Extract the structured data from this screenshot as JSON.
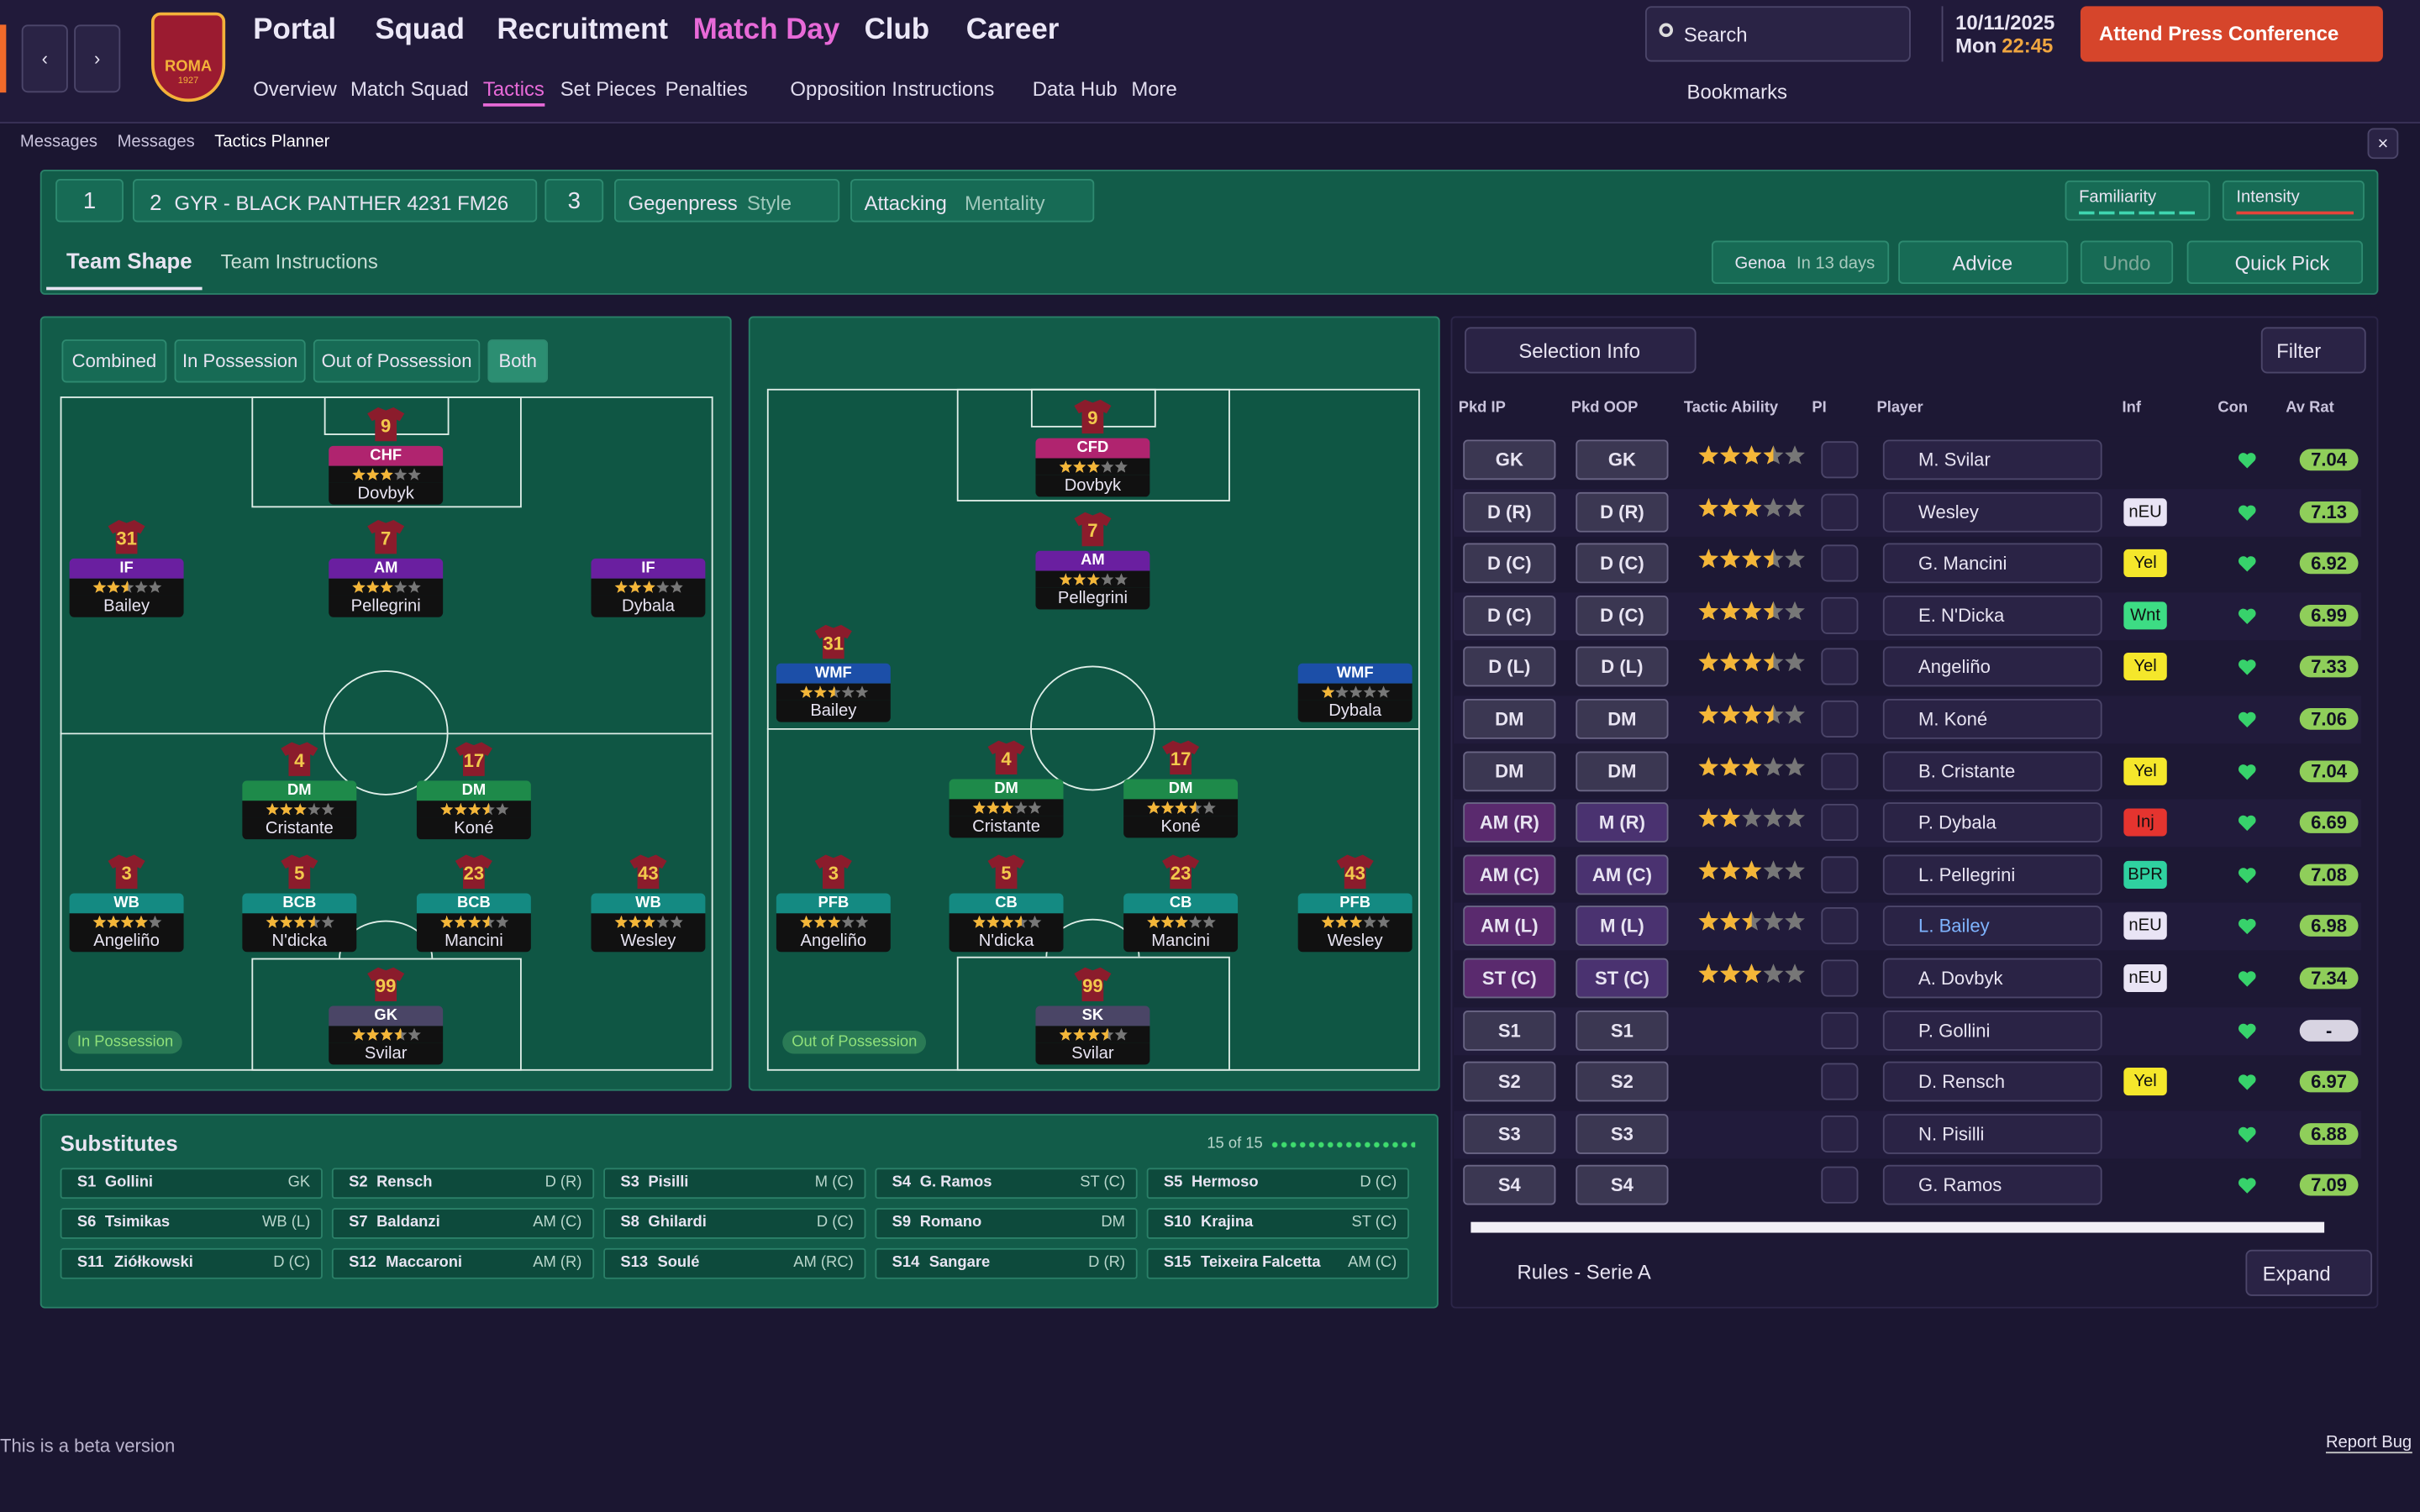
{
  "header": {
    "nav": [
      "Portal",
      "Squad",
      "Recruitment",
      "Match Day",
      "Club",
      "Career"
    ],
    "subnav": [
      "Overview",
      "Match Squad",
      "Tactics",
      "Set Pieces",
      "Penalties",
      "Opposition Instructions",
      "Data Hub",
      "More"
    ],
    "badge_text": "ROMA",
    "badge_year": "1927",
    "search": "Search",
    "date": "10/11/2025",
    "day": "Mon",
    "time": "22:45",
    "press": "Attend Press Conference",
    "bookmarks": "Bookmarks"
  },
  "breadcrumb": [
    "Messages",
    "Messages",
    "Tactics Planner"
  ],
  "tactic": {
    "slots": [
      "1",
      "2",
      "3"
    ],
    "name": "GYR - BLACK PANTHER 4231 FM26",
    "style": "Gegenpress",
    "style_label": "Style",
    "mentality": "Attacking",
    "mentality_label": "Mentality",
    "familiarity": "Familiarity",
    "intensity": "Intensity"
  },
  "tabs": [
    "Team Shape",
    "Team Instructions"
  ],
  "next_match": {
    "opponent": "Genoa",
    "when": "In 13 days"
  },
  "actions": {
    "advice": "Advice",
    "undo": "Undo",
    "quick_pick": "Quick Pick"
  },
  "shape_toggles": [
    "Combined",
    "In Possession",
    "Out of Possession",
    "Both"
  ],
  "pitches": [
    {
      "label": "In Possession",
      "players": [
        {
          "number": 9,
          "role": "CHF",
          "rating": 3,
          "name": "Dovbyk",
          "color": "#b0246f"
        },
        {
          "number": 31,
          "role": "IF",
          "rating": 2.5,
          "name": "Bailey",
          "color": "#6a1fa0"
        },
        {
          "number": 7,
          "role": "AM",
          "rating": 3,
          "name": "Pellegrini",
          "color": "#6a1fa0"
        },
        {
          "number": null,
          "role": "IF",
          "rating": 3,
          "name": "Dybala",
          "color": "#6a1fa0"
        },
        {
          "number": 4,
          "role": "DM",
          "rating": 3,
          "name": "Cristante",
          "color": "#1e8a4a"
        },
        {
          "number": 17,
          "role": "DM",
          "rating": 3.5,
          "name": "Koné",
          "color": "#1e8a4a"
        },
        {
          "number": 3,
          "role": "WB",
          "rating": 4,
          "name": "Angeliño",
          "color": "#148a82"
        },
        {
          "number": 5,
          "role": "BCB",
          "rating": 3.5,
          "name": "N'dicka",
          "color": "#148a82"
        },
        {
          "number": 23,
          "role": "BCB",
          "rating": 3.5,
          "name": "Mancini",
          "color": "#148a82"
        },
        {
          "number": 43,
          "role": "WB",
          "rating": 3,
          "name": "Wesley",
          "color": "#148a82"
        },
        {
          "number": 99,
          "role": "GK",
          "rating": 3.5,
          "name": "Svilar",
          "color": "#4a4566"
        }
      ]
    },
    {
      "label": "Out of Possession",
      "players": [
        {
          "number": 9,
          "role": "CFD",
          "rating": 3,
          "name": "Dovbyk",
          "color": "#b0246f"
        },
        {
          "number": 31,
          "role": "WMF",
          "rating": 2.5,
          "name": "Bailey",
          "color": "#1c4fa8"
        },
        {
          "number": 7,
          "role": "AM",
          "rating": 3,
          "name": "Pellegrini",
          "color": "#6a1fa0"
        },
        {
          "number": null,
          "role": "WMF",
          "rating": 1,
          "name": "Dybala",
          "color": "#1c4fa8"
        },
        {
          "number": 4,
          "role": "DM",
          "rating": 3,
          "name": "Cristante",
          "color": "#1e8a4a"
        },
        {
          "number": 17,
          "role": "DM",
          "rating": 3.5,
          "name": "Koné",
          "color": "#1e8a4a"
        },
        {
          "number": 3,
          "role": "PFB",
          "rating": 3,
          "name": "Angeliño",
          "color": "#148a82"
        },
        {
          "number": 5,
          "role": "CB",
          "rating": 3.5,
          "name": "N'dicka",
          "color": "#148a82"
        },
        {
          "number": 23,
          "role": "CB",
          "rating": 3,
          "name": "Mancini",
          "color": "#148a82"
        },
        {
          "number": 43,
          "role": "PFB",
          "rating": 3,
          "name": "Wesley",
          "color": "#148a82"
        },
        {
          "number": 99,
          "role": "SK",
          "rating": 3.5,
          "name": "Svilar",
          "color": "#4a4566"
        }
      ]
    }
  ],
  "substitutes": {
    "title": "Substitutes",
    "count": "15 of 15",
    "players": [
      {
        "slot": "S1",
        "name": "Gollini",
        "position": "GK"
      },
      {
        "slot": "S2",
        "name": "Rensch",
        "position": "D (R)"
      },
      {
        "slot": "S3",
        "name": "Pisilli",
        "position": "M (C)"
      },
      {
        "slot": "S4",
        "name": "G. Ramos",
        "position": "ST (C)"
      },
      {
        "slot": "S5",
        "name": "Hermoso",
        "position": "D (C)"
      },
      {
        "slot": "S6",
        "name": "Tsimikas",
        "position": "WB (L)"
      },
      {
        "slot": "S7",
        "name": "Baldanzi",
        "position": "AM (C)"
      },
      {
        "slot": "S8",
        "name": "Ghilardi",
        "position": "D (C)"
      },
      {
        "slot": "S9",
        "name": "Romano",
        "position": "DM"
      },
      {
        "slot": "S10",
        "name": "Krajina",
        "position": "ST (C)"
      },
      {
        "slot": "S11",
        "name": "Ziółkowski",
        "position": "D (C)"
      },
      {
        "slot": "S12",
        "name": "Maccaroni",
        "position": "AM (R)"
      },
      {
        "slot": "S13",
        "name": "Soulé",
        "position": "AM (RC)"
      },
      {
        "slot": "S14",
        "name": "Sangare",
        "position": "D (R)"
      },
      {
        "slot": "S15",
        "name": "Teixeira Falcetta",
        "position": "AM (C)"
      }
    ]
  },
  "selection": {
    "title": "Selection Info",
    "filter": "Filter",
    "columns": [
      "Pkd IP",
      "Pkd OOP",
      "Tactic Ability",
      "PI",
      "Player",
      "Inf",
      "Con",
      "Av Rat"
    ],
    "rows": [
      {
        "ip": "GK",
        "oop": "GK",
        "ability": 3.5,
        "player": "M. Svilar",
        "inf": null,
        "av_rat": 7.04
      },
      {
        "ip": "D (R)",
        "oop": "D (R)",
        "ability": 3,
        "player": "Wesley",
        "inf": "nEU",
        "av_rat": 7.13
      },
      {
        "ip": "D (C)",
        "oop": "D (C)",
        "ability": 3.5,
        "player": "G. Mancini",
        "inf": "Yel",
        "av_rat": 6.92
      },
      {
        "ip": "D (C)",
        "oop": "D (C)",
        "ability": 3.5,
        "player": "E. N'Dicka",
        "inf": "Wnt",
        "av_rat": 6.99
      },
      {
        "ip": "D (L)",
        "oop": "D (L)",
        "ability": 3.5,
        "player": "Angeliño",
        "inf": "Yel",
        "av_rat": 7.33
      },
      {
        "ip": "DM",
        "oop": "DM",
        "ability": 3.5,
        "player": "M. Koné",
        "inf": null,
        "av_rat": 7.06
      },
      {
        "ip": "DM",
        "oop": "DM",
        "ability": 3,
        "player": "B. Cristante",
        "inf": "Yel",
        "av_rat": 7.04
      },
      {
        "ip": "AM (R)",
        "oop": "M (R)",
        "ability": 2,
        "player": "P. Dybala",
        "inf": "Inj",
        "av_rat": 6.69
      },
      {
        "ip": "AM (C)",
        "oop": "AM (C)",
        "ability": 3,
        "player": "L. Pellegrini",
        "inf": "BPR",
        "av_rat": 7.08
      },
      {
        "ip": "AM (L)",
        "oop": "M (L)",
        "ability": 2.5,
        "player": "L. Bailey",
        "inf": "nEU",
        "av_rat": 6.98
      },
      {
        "ip": "ST (C)",
        "oop": "ST (C)",
        "ability": 3,
        "player": "A. Dovbyk",
        "inf": "nEU",
        "av_rat": 7.34
      },
      {
        "ip": "S1",
        "oop": "S1",
        "ability": null,
        "player": "P. Gollini",
        "inf": null,
        "av_rat": "-"
      },
      {
        "ip": "S2",
        "oop": "S2",
        "ability": null,
        "player": "D. Rensch",
        "inf": "Yel",
        "av_rat": 6.97
      },
      {
        "ip": "S3",
        "oop": "S3",
        "ability": null,
        "player": "N. Pisilli",
        "inf": null,
        "av_rat": 6.88
      },
      {
        "ip": "S4",
        "oop": "S4",
        "ability": null,
        "player": "G. Ramos",
        "inf": null,
        "av_rat": 7.09
      }
    ],
    "rules": "Rules - Serie A",
    "expand": "Expand"
  },
  "footer": {
    "beta": "This is a beta version",
    "report": "Report Bug"
  }
}
